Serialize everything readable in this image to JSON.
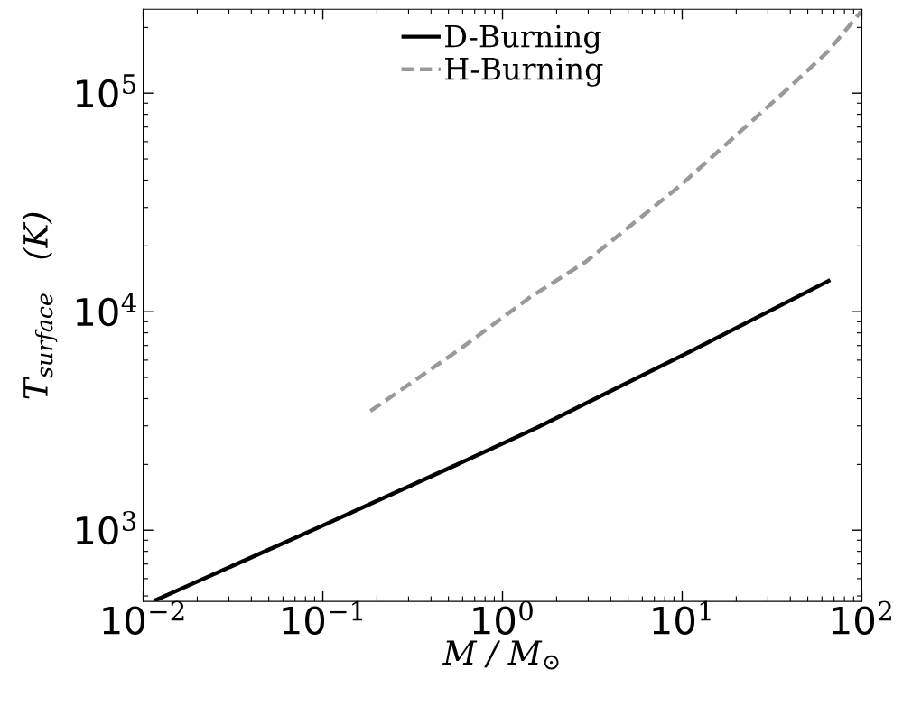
{
  "chart_data": {
    "type": "line",
    "xlabel": "M / M$_{⊙}$",
    "ylabel": "T$_{surface}$   (K)",
    "log": "xy",
    "xlim": [
      0.01,
      100
    ],
    "ylim": [
      472,
      242000
    ],
    "xticks": [
      {
        "value": 0.01,
        "label": "10$^{−2}$"
      },
      {
        "value": 0.1,
        "label": "10$^{−1}$"
      },
      {
        "value": 1,
        "label": "10$^{0}$"
      },
      {
        "value": 10,
        "label": "10$^{1}$"
      },
      {
        "value": 100,
        "label": "10$^{2}$"
      }
    ],
    "yticks": [
      {
        "value": 1000,
        "label": "10$^{3}$"
      },
      {
        "value": 10000,
        "label": "10$^{4}$"
      },
      {
        "value": 100000,
        "label": "10$^{5}$"
      }
    ],
    "legend": "top",
    "grid": false,
    "series": [
      {
        "name": "D-Burning",
        "color": "#000000",
        "line_style": "solid",
        "x": [
          0.0115,
          0.1,
          0.553,
          1.57,
          10,
          66.7
        ],
        "values": [
          475,
          1050,
          1990,
          2960,
          6300,
          13960
        ]
      },
      {
        "name": "H-Burning",
        "color": "#999999",
        "line_style": "dashed",
        "x": [
          0.184,
          0.573,
          1.4,
          2.9,
          9.8,
          39.3,
          64.7,
          98.9
        ],
        "values": [
          3510,
          6700,
          11530,
          16900,
          37900,
          105900,
          155000,
          236000
        ]
      }
    ]
  }
}
